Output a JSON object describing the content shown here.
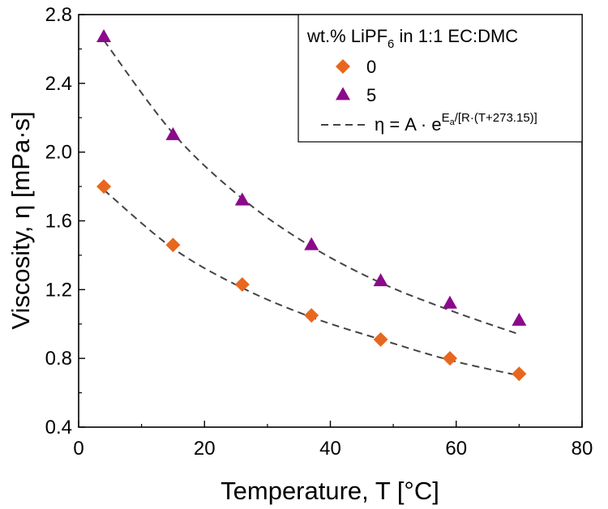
{
  "chart_data": {
    "type": "scatter",
    "xlabel": "Temperature, T [°C]",
    "ylabel": "Viscosity, η [mPa·s]",
    "xlim": [
      0,
      80
    ],
    "ylim": [
      0.4,
      2.8
    ],
    "xticks": [
      0,
      20,
      40,
      60,
      80
    ],
    "xtick_labels": [
      "0",
      "20",
      "40",
      "60",
      "80"
    ],
    "yticks": [
      0.4,
      0.8,
      1.2,
      1.6,
      2.0,
      2.4,
      2.8
    ],
    "ytick_labels": [
      "0.4",
      "0.8",
      "1.2",
      "1.6",
      "2.0",
      "2.4",
      "2.8"
    ],
    "grid": false,
    "legend": {
      "placement": "top-right",
      "title_prefix": "wt.% LiPF",
      "title_sub": "6",
      "title_suffix": " in 1:1 EC:DMC",
      "fit_label_prefix": "η = A · e",
      "fit_label_sup_main": "E",
      "fit_label_sup_sub": "a",
      "fit_label_sup_rest": "/[R·(T+273.15)]"
    },
    "series": [
      {
        "name": "0",
        "marker": "diamond",
        "color": "#E8671E",
        "x": [
          4,
          15,
          26,
          37,
          48,
          59,
          70
        ],
        "y": [
          1.8,
          1.46,
          1.23,
          1.05,
          0.91,
          0.8,
          0.71
        ],
        "fit": [
          1.78,
          1.44,
          1.21,
          1.04,
          0.91,
          0.79,
          0.7
        ]
      },
      {
        "name": "5",
        "marker": "triangle",
        "color": "#8B0A8B",
        "x": [
          4,
          15,
          26,
          37,
          48,
          59,
          70
        ],
        "y": [
          2.67,
          2.1,
          1.72,
          1.46,
          1.25,
          1.12,
          1.02
        ],
        "fit": [
          2.65,
          2.11,
          1.73,
          1.45,
          1.24,
          1.08,
          0.94
        ]
      }
    ],
    "fit_line_color": "#444444"
  }
}
